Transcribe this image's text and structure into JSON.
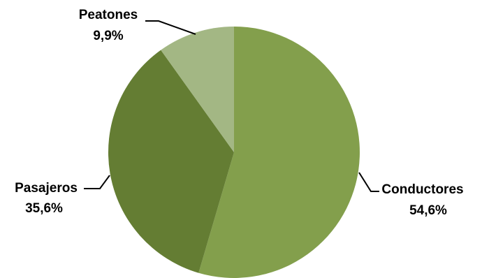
{
  "chart_data": {
    "type": "pie",
    "title": "",
    "slices": [
      {
        "name": "Conductores",
        "value": 54.6,
        "display": "54,6%",
        "color": "#839f4c"
      },
      {
        "name": "Pasajeros",
        "value": 35.6,
        "display": "35,6%",
        "color": "#647d33"
      },
      {
        "name": "Peatones",
        "value": 9.9,
        "display": "9,9%",
        "color": "#a3b784"
      }
    ],
    "start_angle_deg": 0,
    "direction": "clockwise",
    "legend": "none",
    "data_labels": "outside-with-leader-lines"
  }
}
